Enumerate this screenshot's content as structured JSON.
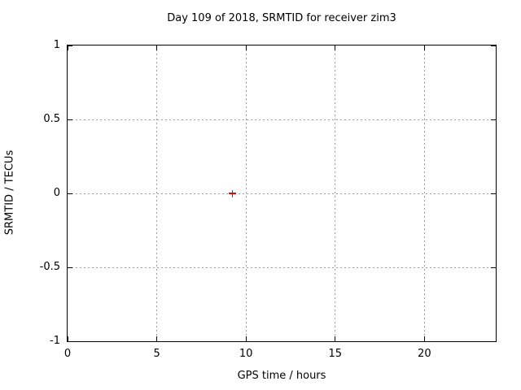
{
  "chart_data": {
    "type": "scatter",
    "title": "Day 109 of 2018, SRMTID for receiver zim3",
    "xlabel": "GPS time / hours",
    "ylabel": "SRMTID / TECUs",
    "xlim": [
      0,
      24
    ],
    "ylim": [
      -1,
      1
    ],
    "grid": true,
    "legend": "none",
    "xticks": [
      {
        "v": 0,
        "label": "0"
      },
      {
        "v": 5,
        "label": "5"
      },
      {
        "v": 10,
        "label": "10"
      },
      {
        "v": 15,
        "label": "15"
      },
      {
        "v": 20,
        "label": "20"
      }
    ],
    "yticks": [
      {
        "v": 1,
        "label": "1"
      },
      {
        "v": 0.5,
        "label": "0.5"
      },
      {
        "v": 0,
        "label": "0"
      },
      {
        "v": -0.5,
        "label": "-0.5"
      },
      {
        "v": -1,
        "label": "-1"
      }
    ],
    "series": [
      {
        "name": "SRMTID",
        "marker": "plus",
        "color": "#ff0000",
        "points": [
          {
            "x": 9.25,
            "y": 0
          }
        ]
      }
    ],
    "colors": {
      "border": "#000000",
      "grid": "#9c9c9c",
      "background": "#ffffff",
      "text": "#000000"
    }
  }
}
